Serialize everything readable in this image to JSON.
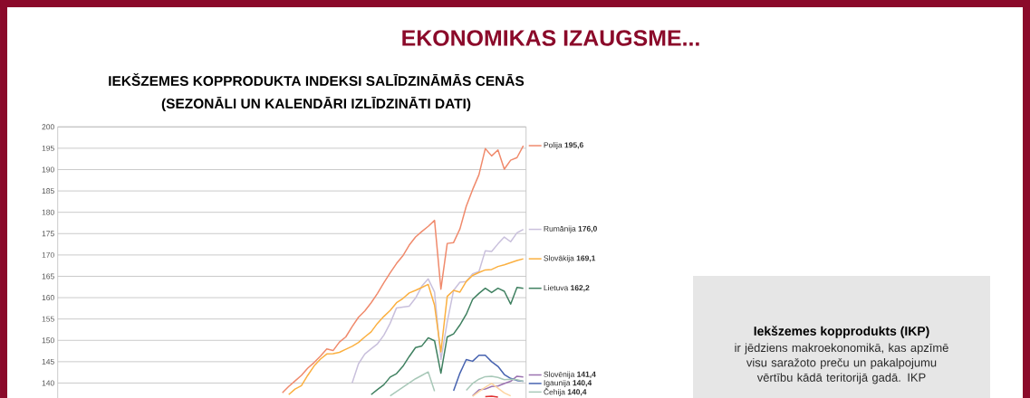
{
  "chart_data": {
    "type": "line",
    "title": "IEKŠZEMES KOPPRODUKTA INDEKSI SALĪDZINĀMĀS CENĀS",
    "subtitle": "(SEZONĀLI UN KALENDĀRI IZLĪDZINĀTI DATI)",
    "annotations": [
      "EKONOMIKAS IZAUGSME...",
      "Iekšzemes kopprodukts (IKP)",
      "ir jēdziens makroekonomikā, kas apzīmē visu saražoto preču un pakalpojumu vērtību kādā teritorijā gadā. IKP"
    ],
    "categories": [
      null,
      null,
      null,
      null,
      null,
      null,
      null,
      null,
      null,
      null,
      null,
      null,
      null,
      null,
      null,
      null,
      null,
      null,
      null,
      null,
      null,
      null,
      null,
      null,
      null,
      null,
      null,
      null,
      null,
      null,
      null,
      null,
      null,
      null,
      null,
      null,
      null,
      null,
      null,
      null,
      null,
      null,
      null,
      null,
      null,
      null,
      null,
      null,
      null,
      null,
      null,
      null,
      null,
      null,
      null,
      null,
      null,
      null,
      null,
      null,
      null,
      null,
      null,
      null,
      null,
      null,
      null,
      null,
      null,
      null,
      null,
      null,
      null,
      null
    ],
    "ylim": [
      136.5,
      200
    ],
    "yticks": [
      140,
      145,
      150,
      155,
      160,
      165,
      170,
      175,
      180,
      185,
      190,
      195,
      200
    ],
    "grid": "y",
    "tick_labels": "y",
    "legend": "right",
    "line_style": "solid",
    "series": [
      {
        "name": "Polija **195,6**",
        "color": "#f08a6c",
        "values": [
          null,
          null,
          null,
          null,
          null,
          null,
          null,
          null,
          null,
          null,
          null,
          null,
          null,
          null,
          null,
          null,
          null,
          null,
          null,
          null,
          null,
          null,
          null,
          null,
          null,
          null,
          null,
          null,
          null,
          null,
          null,
          null,
          null,
          null,
          null,
          137.7,
          139.2,
          140.5,
          141.8,
          143.5,
          144.8,
          146.3,
          148.0,
          147.6,
          149.6,
          150.8,
          153.2,
          155.4,
          156.9,
          158.8,
          161.0,
          163.5,
          165.8,
          168.0,
          169.8,
          172.3,
          174.2,
          175.5,
          176.7,
          178.1,
          162.0,
          172.7,
          172.9,
          176.1,
          181.4,
          185.3,
          188.8,
          194.9,
          193.2,
          194.6,
          190.1,
          192.2,
          192.8,
          195.6
        ]
      },
      {
        "name": "Rumānija **176,0**",
        "color": "#c9c0dc",
        "values": [
          null,
          null,
          null,
          null,
          null,
          null,
          null,
          null,
          null,
          null,
          null,
          null,
          null,
          null,
          null,
          null,
          null,
          null,
          null,
          null,
          null,
          null,
          null,
          null,
          null,
          null,
          null,
          null,
          null,
          null,
          null,
          null,
          null,
          null,
          null,
          null,
          null,
          null,
          null,
          null,
          null,
          null,
          null,
          null,
          null,
          null,
          140.0,
          144.5,
          146.8,
          148.0,
          149.2,
          151.2,
          154.0,
          157.6,
          157.8,
          158.0,
          159.9,
          162.7,
          164.4,
          161.3,
          145.5,
          154.3,
          161.7,
          163.6,
          163.8,
          165.6,
          166.1,
          171.0,
          170.8,
          172.6,
          174.2,
          173.1,
          175.2,
          176.0
        ]
      },
      {
        "name": "Slovākija **169,1**",
        "color": "#fbb040",
        "values": [
          null,
          null,
          null,
          null,
          null,
          null,
          null,
          null,
          null,
          null,
          null,
          null,
          null,
          null,
          null,
          null,
          null,
          null,
          null,
          null,
          null,
          null,
          null,
          null,
          null,
          null,
          null,
          null,
          null,
          null,
          null,
          null,
          null,
          null,
          null,
          null,
          137.3,
          138.6,
          139.4,
          141.8,
          144.0,
          145.6,
          146.8,
          146.9,
          147.2,
          147.9,
          148.6,
          149.5,
          150.8,
          152.0,
          154.0,
          155.6,
          157.0,
          158.8,
          159.8,
          161.1,
          161.7,
          162.4,
          163.1,
          158.2,
          147.3,
          160.3,
          161.7,
          161.3,
          163.8,
          165.2,
          165.9,
          166.5,
          166.6,
          167.3,
          167.7,
          168.2,
          168.7,
          169.1
        ]
      },
      {
        "name": "Lietuva **162,2**",
        "color": "#3f8060",
        "values": [
          null,
          null,
          null,
          null,
          null,
          null,
          null,
          null,
          null,
          null,
          null,
          null,
          null,
          null,
          null,
          null,
          null,
          null,
          null,
          null,
          null,
          null,
          null,
          null,
          null,
          null,
          null,
          null,
          null,
          null,
          null,
          null,
          null,
          null,
          null,
          null,
          null,
          null,
          null,
          null,
          null,
          null,
          null,
          null,
          null,
          null,
          null,
          null,
          null,
          137.3,
          138.5,
          139.6,
          141.4,
          142.2,
          143.9,
          146.2,
          148.3,
          148.7,
          150.6,
          149.9,
          142.3,
          150.8,
          151.5,
          153.6,
          156.1,
          159.6,
          161.0,
          162.2,
          161.2,
          162.2,
          161.5,
          158.5,
          162.4,
          162.2
        ]
      },
      {
        "name": "Slovēnija **141,4**",
        "color": "#9b72b0",
        "values": [
          null,
          null,
          null,
          null,
          null,
          null,
          null,
          null,
          null,
          null,
          null,
          null,
          null,
          null,
          null,
          null,
          null,
          null,
          null,
          null,
          null,
          null,
          null,
          null,
          null,
          null,
          null,
          null,
          null,
          null,
          null,
          null,
          null,
          null,
          null,
          null,
          null,
          null,
          null,
          null,
          null,
          null,
          null,
          null,
          null,
          null,
          null,
          null,
          null,
          null,
          null,
          null,
          null,
          null,
          null,
          null,
          null,
          null,
          null,
          null,
          null,
          null,
          null,
          null,
          null,
          137.0,
          138.4,
          138.6,
          139.2,
          139.3,
          139.9,
          140.4,
          141.6,
          141.4
        ]
      },
      {
        "name": "Igaunija **140,4**",
        "color": "#4763b0",
        "values": [
          null,
          null,
          null,
          null,
          null,
          null,
          null,
          null,
          null,
          null,
          null,
          null,
          null,
          null,
          null,
          null,
          null,
          null,
          null,
          null,
          null,
          null,
          null,
          null,
          null,
          null,
          null,
          null,
          null,
          null,
          null,
          null,
          null,
          null,
          null,
          null,
          null,
          null,
          null,
          null,
          null,
          null,
          null,
          null,
          null,
          null,
          null,
          null,
          null,
          null,
          null,
          null,
          null,
          null,
          null,
          null,
          null,
          null,
          null,
          null,
          null,
          null,
          138.2,
          142.3,
          145.5,
          145.1,
          146.5,
          146.5,
          145.0,
          143.9,
          142.0,
          141.1,
          140.6,
          140.4
        ]
      },
      {
        "name": "Čehija **140,4**",
        "color": "#a8c8b8",
        "values": [
          null,
          null,
          null,
          null,
          null,
          null,
          null,
          null,
          null,
          null,
          null,
          null,
          null,
          null,
          null,
          null,
          null,
          null,
          null,
          null,
          null,
          null,
          null,
          null,
          null,
          null,
          null,
          null,
          null,
          null,
          null,
          null,
          null,
          null,
          null,
          null,
          null,
          null,
          null,
          null,
          null,
          null,
          null,
          null,
          null,
          null,
          null,
          null,
          null,
          null,
          null,
          null,
          137.0,
          138.0,
          139.0,
          140.0,
          141.0,
          141.8,
          142.6,
          138.1,
          null,
          null,
          null,
          null,
          138.3,
          139.9,
          140.9,
          141.5,
          141.6,
          141.3,
          140.8,
          140.9,
          140.8,
          140.4
        ]
      },
      {
        "color": "#fdd5a0",
        "values": [
          null,
          null,
          null,
          null,
          null,
          null,
          null,
          null,
          null,
          null,
          null,
          null,
          null,
          null,
          null,
          null,
          null,
          null,
          null,
          null,
          null,
          null,
          null,
          null,
          null,
          null,
          null,
          null,
          null,
          null,
          null,
          null,
          null,
          null,
          null,
          null,
          null,
          null,
          null,
          null,
          null,
          null,
          null,
          null,
          null,
          null,
          null,
          null,
          null,
          null,
          null,
          null,
          null,
          null,
          null,
          null,
          null,
          null,
          null,
          null,
          null,
          null,
          null,
          null,
          null,
          136.9,
          138.0,
          139.0,
          139.9,
          138.8,
          137.7,
          137.0,
          null,
          null
        ]
      },
      {
        "color": "#e03030",
        "values": [
          null,
          null,
          null,
          null,
          null,
          null,
          null,
          null,
          null,
          null,
          null,
          null,
          null,
          null,
          null,
          null,
          null,
          null,
          null,
          null,
          null,
          null,
          null,
          null,
          null,
          null,
          null,
          null,
          null,
          null,
          null,
          null,
          null,
          null,
          null,
          null,
          null,
          null,
          null,
          null,
          null,
          null,
          null,
          null,
          null,
          null,
          null,
          null,
          null,
          null,
          null,
          null,
          null,
          null,
          null,
          null,
          null,
          null,
          null,
          null,
          null,
          null,
          null,
          null,
          null,
          null,
          null,
          136.8,
          136.9,
          136.7,
          null,
          null,
          null,
          null
        ]
      }
    ]
  }
}
